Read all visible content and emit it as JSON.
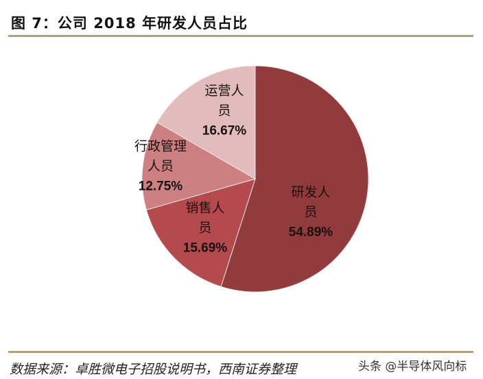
{
  "title": "图 7：公司 2018 年研发人员占比",
  "source": "数据来源：卓胜微电子招股说明书，西南证券整理",
  "watermark": "头条 @半导体风向标",
  "chart_data": {
    "type": "pie",
    "title": "图 7：公司 2018 年研发人员占比",
    "start": "12 o'clock, clockwise",
    "slices": [
      {
        "label": "研发人员",
        "value": 54.89,
        "display": "54.89%",
        "color": "#923b3c"
      },
      {
        "label": "销售人员",
        "value": 15.69,
        "display": "15.69%",
        "color": "#b44a4d"
      },
      {
        "label": "行政管理人员",
        "value": 12.75,
        "display": "12.75%",
        "color": "#cd8081"
      },
      {
        "label": "运营人员",
        "value": 16.67,
        "display": "16.67%",
        "color": "#e2bcbc"
      }
    ]
  }
}
